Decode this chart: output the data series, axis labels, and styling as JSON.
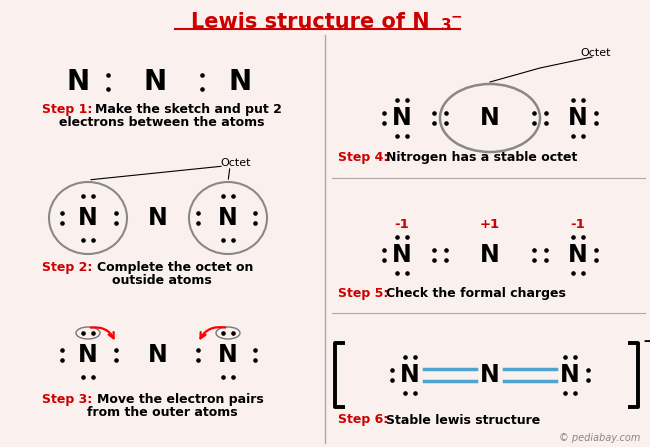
{
  "bg_color": "#FAF0EE",
  "title_color": "#CC0000",
  "step_color": "#CC0000",
  "bond_color": "#4FA3D1",
  "divider_color": "#AAAAAA",
  "watermark": "© pediabay.com",
  "title_main": "Lewis structure of N",
  "title_sub": "3",
  "title_sup": "−"
}
